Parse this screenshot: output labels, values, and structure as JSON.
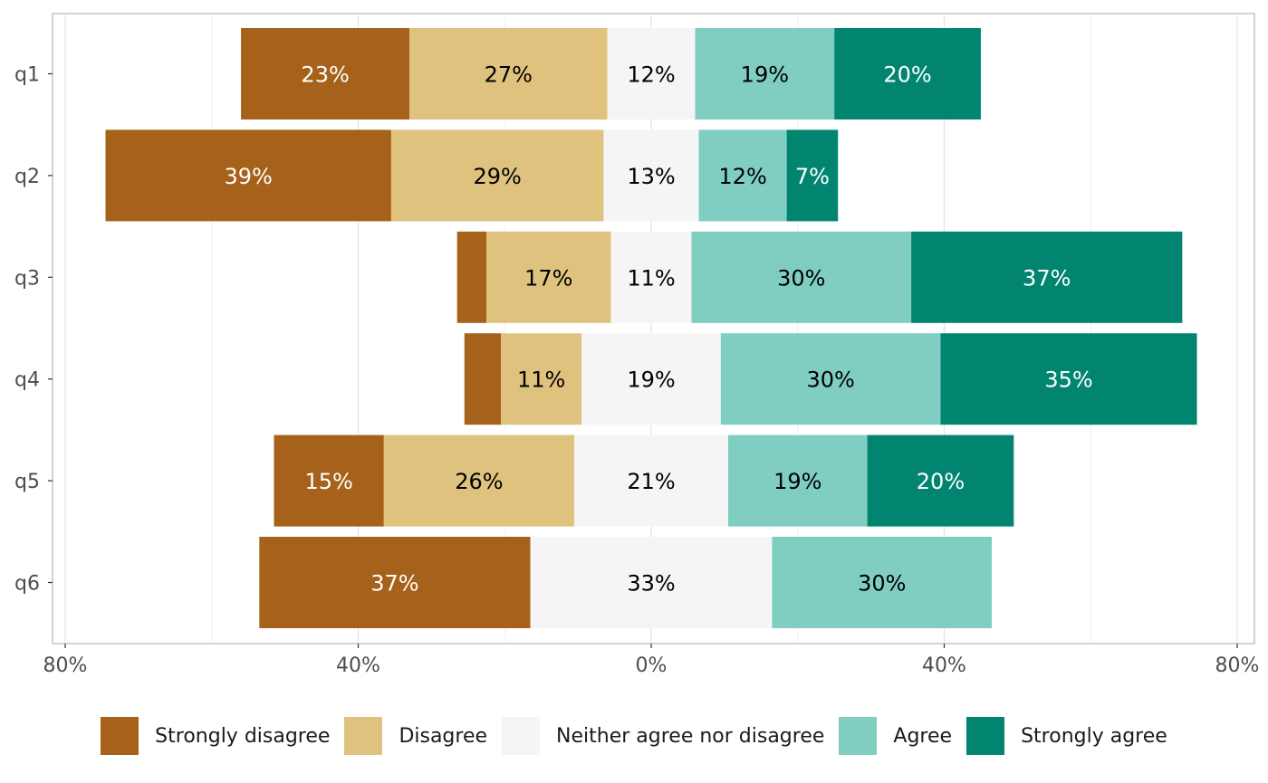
{
  "chart_data": {
    "type": "bar",
    "orientation": "horizontal-diverging",
    "categories": [
      "q1",
      "q2",
      "q3",
      "q4",
      "q5",
      "q6"
    ],
    "series": [
      {
        "name": "Strongly disagree",
        "color": "#a6611a",
        "label_color": "#ffffff",
        "values": [
          23,
          39,
          4,
          5,
          15,
          37
        ],
        "labels": [
          "23%",
          "39%",
          "",
          "",
          "15%",
          "37%"
        ]
      },
      {
        "name": "Disagree",
        "color": "#dfc27d",
        "label_color": "#000000",
        "values": [
          27,
          29,
          17,
          11,
          26,
          0
        ],
        "labels": [
          "27%",
          "29%",
          "17%",
          "11%",
          "26%",
          ""
        ]
      },
      {
        "name": "Neither agree nor disagree",
        "color": "#f5f5f5",
        "label_color": "#000000",
        "values": [
          12,
          13,
          11,
          19,
          21,
          33
        ],
        "labels": [
          "12%",
          "13%",
          "11%",
          "19%",
          "21%",
          "33%"
        ]
      },
      {
        "name": "Agree",
        "color": "#80cdc1",
        "label_color": "#000000",
        "values": [
          19,
          12,
          30,
          30,
          19,
          30
        ],
        "labels": [
          "19%",
          "12%",
          "30%",
          "30%",
          "19%",
          "30%"
        ]
      },
      {
        "name": "Strongly agree",
        "color": "#018571",
        "label_color": "#ffffff",
        "values": [
          20,
          7,
          37,
          35,
          20,
          0
        ],
        "labels": [
          "20%",
          "7%",
          "37%",
          "35%",
          "20%",
          ""
        ]
      }
    ],
    "neutral_series": "Neither agree nor disagree",
    "xlim": [
      -80,
      80
    ],
    "x_ticks": [
      -80,
      -40,
      0,
      40,
      80
    ],
    "x_tick_labels": [
      "80%",
      "40%",
      "0%",
      "40%",
      "80%"
    ],
    "xlabel": "",
    "ylabel": "",
    "title": "",
    "grid": true,
    "legend_position": "bottom"
  }
}
